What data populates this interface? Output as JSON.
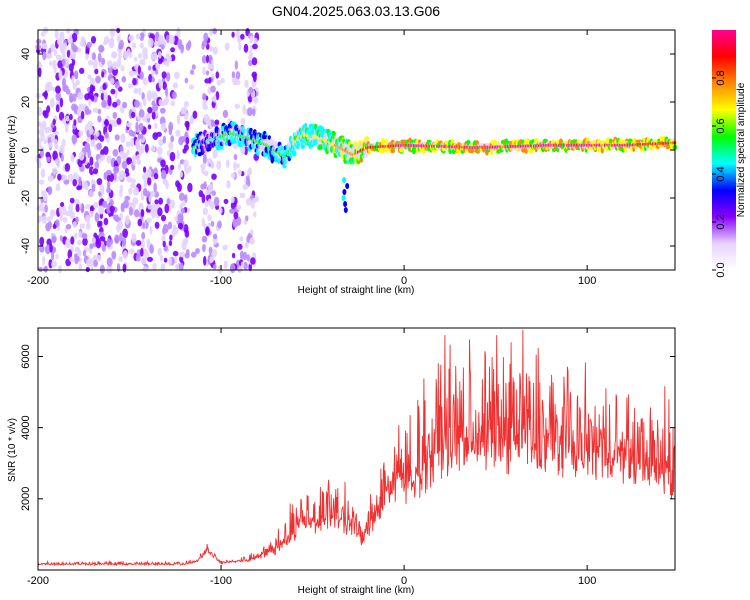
{
  "title": "GN04.2025.063.03.13.G06",
  "chart_data": [
    {
      "type": "heatmap",
      "xlabel": "Height of straight line (km)",
      "ylabel": "Frequency (Hz)",
      "xlim": [
        -200,
        148
      ],
      "ylim": [
        -50,
        50
      ],
      "xticks": [
        -200,
        -100,
        0,
        100
      ],
      "yticks": [
        -40,
        -20,
        0,
        20,
        40
      ],
      "colorbar": {
        "label": "Normalized spectral amplitude",
        "range": [
          0,
          1
        ],
        "ticks": [
          "0.0",
          "0.2",
          "0.4",
          "0.6",
          "0.8"
        ],
        "colors": [
          "#ffffff",
          "#e6d2ff",
          "#8800ff",
          "#0000ff",
          "#00ffff",
          "#00ff00",
          "#ffff00",
          "#ff8800",
          "#ff0000",
          "#ff0090"
        ]
      },
      "noise_region_x": [
        -200,
        -80
      ],
      "signal_track": [
        {
          "x": -115,
          "y": 1,
          "amp": 0.5
        },
        {
          "x": -110,
          "y": 3,
          "amp": 0.3
        },
        {
          "x": -95,
          "y": 7,
          "amp": 0.55
        },
        {
          "x": -85,
          "y": 5,
          "amp": 0.5
        },
        {
          "x": -75,
          "y": 2,
          "amp": 0.45
        },
        {
          "x": -65,
          "y": -3,
          "amp": 0.5
        },
        {
          "x": -57,
          "y": 6,
          "amp": 0.6
        },
        {
          "x": -50,
          "y": 6,
          "amp": 0.6
        },
        {
          "x": -40,
          "y": 3,
          "amp": 0.65
        },
        {
          "x": -32,
          "y": -25,
          "amp": 0.25
        },
        {
          "x": -28,
          "y": -2,
          "amp": 0.75
        },
        {
          "x": -20,
          "y": 1,
          "amp": 0.85
        },
        {
          "x": 0,
          "y": 2,
          "amp": 0.9
        },
        {
          "x": 40,
          "y": 1,
          "amp": 0.9
        },
        {
          "x": 80,
          "y": 2,
          "amp": 0.9
        },
        {
          "x": 120,
          "y": 2,
          "amp": 0.9
        },
        {
          "x": 148,
          "y": 3,
          "amp": 0.85
        }
      ]
    },
    {
      "type": "line",
      "xlabel": "Height of straight line (km)",
      "ylabel": "SNR (10 * v/v)",
      "xlim": [
        -200,
        148
      ],
      "ylim": [
        0,
        6800
      ],
      "xticks": [
        -200,
        -100,
        0,
        100
      ],
      "yticks": [
        2000,
        4000,
        6000
      ],
      "line_color": "#f03030",
      "envelope": {
        "x": [
          -200,
          -120,
          -113,
          -108,
          -100,
          -85,
          -70,
          -60,
          -55,
          -48,
          -40,
          -30,
          -22,
          -15,
          -10,
          0,
          10,
          20,
          30,
          40,
          50,
          60,
          70,
          80,
          90,
          100,
          110,
          120,
          130,
          140,
          145,
          148
        ],
        "base": [
          150,
          150,
          220,
          500,
          180,
          250,
          500,
          900,
          1200,
          1100,
          1300,
          1100,
          700,
          1400,
          1800,
          2000,
          2400,
          2900,
          3000,
          3100,
          3100,
          3100,
          3100,
          3000,
          2950,
          2900,
          2800,
          2700,
          2600,
          2400,
          2200,
          2000
        ],
        "amplitude": [
          80,
          80,
          100,
          250,
          80,
          150,
          500,
          1000,
          1100,
          1100,
          1300,
          1000,
          600,
          1500,
          1900,
          2200,
          2700,
          2800,
          2900,
          2900,
          3000,
          2900,
          2800,
          2700,
          2400,
          2300,
          2200,
          2200,
          2100,
          2000,
          3000,
          1500
        ]
      },
      "peak": {
        "x": 65,
        "y": 6750
      }
    }
  ]
}
